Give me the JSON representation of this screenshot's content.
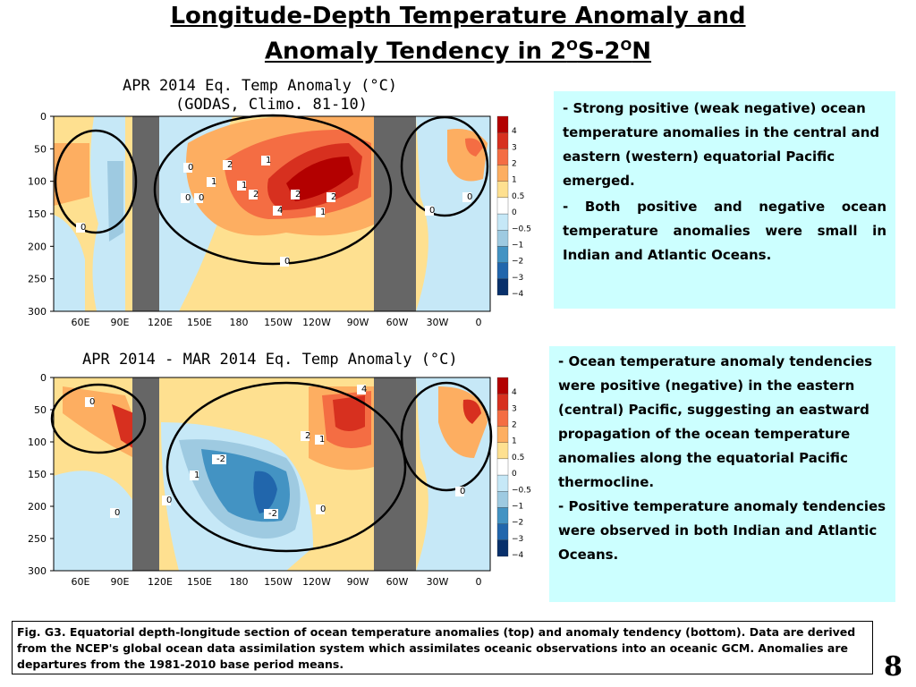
{
  "title": {
    "line1": "Longitude-Depth Temperature Anomaly and",
    "line2_main": "Anomaly Tendency in 2",
    "line2_sup1": "O",
    "line2_mid": "S-2",
    "line2_sup2": "O",
    "line2_end": "N"
  },
  "top_panel": {
    "title1": "APR 2014 Eq. Temp Anomaly (°C)",
    "title2": "(GODAS,  Climo. 81-10)"
  },
  "bottom_panel": {
    "title1": "APR 2014 - MAR 2014 Eq. Temp Anomaly (°C)"
  },
  "axes": {
    "y_ticks": [
      "0",
      "50",
      "100",
      "150",
      "200",
      "250",
      "300"
    ],
    "x_ticks": [
      "60E",
      "90E",
      "120E",
      "150E",
      "180",
      "150W",
      "120W",
      "90W",
      "60W",
      "30W",
      "0"
    ]
  },
  "colorbar": {
    "labels": [
      "4",
      "3",
      "2",
      "1",
      "0.5",
      "0",
      "−0.5",
      "−1",
      "−2",
      "−3",
      "−4"
    ],
    "colors": [
      "#b30000",
      "#d7301f",
      "#f46d43",
      "#fdae61",
      "#fee090",
      "#ffffff",
      "#c6e8f7",
      "#9ecae1",
      "#4393c3",
      "#2166ac",
      "#08306b"
    ]
  },
  "contour_labels_top": [
    "1",
    "0",
    "1",
    "0",
    "0",
    "2",
    "4",
    "2",
    "1",
    "2",
    "0",
    "0",
    "0",
    "0",
    "1",
    "2"
  ],
  "contour_labels_bottom": [
    "4",
    "1",
    "2",
    "-2",
    "1",
    "-2",
    "0",
    "0",
    "0",
    "0",
    "0"
  ],
  "box1": {
    "para1": "Strong positive (weak negative) ocean temperature anomalies in the central and eastern (western) equatorial Pacific emerged.",
    "para2": "Both positive and negative ocean temperature anomalies were small in Indian and Atlantic Oceans."
  },
  "box2": {
    "para1": "Ocean temperature  anomaly tendencies were positive (negative) in the eastern (central) Pacific, suggesting an eastward propagation of the ocean temperature anomalies along the equatorial Pacific thermocline.",
    "para2": "Positive temperature  anomaly tendencies were observed in both Indian and Atlantic Oceans."
  },
  "caption": "Fig. G3. Equatorial depth-longitude section of ocean temperature anomalies (top) and anomaly tendency (bottom). Data are derived from the NCEP's global ocean data assimilation system which assimilates oceanic observations into an oceanic GCM. Anomalies are departures from the 1981-2010 base period means.",
  "page_number": "8"
}
